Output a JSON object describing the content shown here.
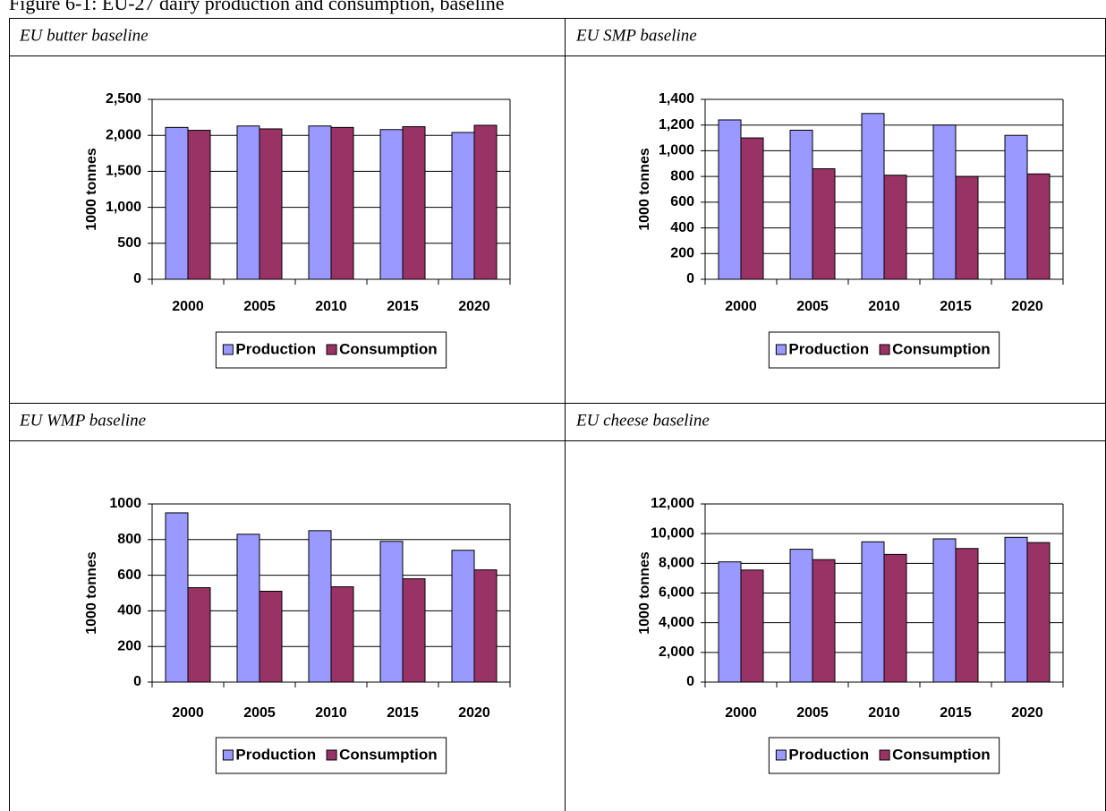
{
  "figure_title": "Figure 6-1: EU-27 dairy production and consumption, baseline",
  "chart_data": [
    {
      "type": "bar",
      "title": "EU butter baseline",
      "y_label": "1000 tonnes",
      "categories": [
        "2000",
        "2005",
        "2010",
        "2015",
        "2020"
      ],
      "series": [
        {
          "name": "Production",
          "color": "#9999ff",
          "values": [
            2110,
            2130,
            2130,
            2080,
            2040
          ]
        },
        {
          "name": "Consumption",
          "color": "#993366",
          "values": [
            2070,
            2090,
            2110,
            2120,
            2140
          ]
        }
      ],
      "ylim": [
        0,
        2500
      ],
      "yticks": [
        0,
        500,
        {
          "value": 1000,
          "label": "1,000"
        },
        {
          "value": 1500,
          "label": "1,500"
        },
        {
          "value": 2000,
          "label": "2,000"
        },
        {
          "value": 2500,
          "label": "2,500"
        }
      ],
      "grid": true,
      "legend": "bottom"
    },
    {
      "type": "bar",
      "title": "EU SMP baseline",
      "y_label": "1000 tonnes",
      "categories": [
        "2000",
        "2005",
        "2010",
        "2015",
        "2020"
      ],
      "series": [
        {
          "name": "Production",
          "color": "#9999ff",
          "values": [
            1240,
            1160,
            1290,
            1200,
            1120
          ]
        },
        {
          "name": "Consumption",
          "color": "#993366",
          "values": [
            1100,
            860,
            810,
            800,
            820
          ]
        }
      ],
      "ylim": [
        0,
        1400
      ],
      "yticks": [
        0,
        200,
        400,
        600,
        800,
        {
          "value": 1000,
          "label": "1,000"
        },
        {
          "value": 1200,
          "label": "1,200"
        },
        {
          "value": 1400,
          "label": "1,400"
        }
      ],
      "grid": true,
      "legend": "bottom"
    },
    {
      "type": "bar",
      "title": "EU WMP baseline",
      "y_label": "1000 tonnes",
      "categories": [
        "2000",
        "2005",
        "2010",
        "2015",
        "2020"
      ],
      "series": [
        {
          "name": "Production",
          "color": "#9999ff",
          "values": [
            950,
            830,
            850,
            790,
            740
          ]
        },
        {
          "name": "Consumption",
          "color": "#993366",
          "values": [
            530,
            510,
            535,
            580,
            630
          ]
        }
      ],
      "ylim": [
        0,
        1000
      ],
      "yticks": [
        0,
        200,
        400,
        600,
        800,
        1000
      ],
      "grid": true,
      "legend": "bottom"
    },
    {
      "type": "bar",
      "title": "EU cheese baseline",
      "y_label": "1000 tonnes",
      "categories": [
        "2000",
        "2005",
        "2010",
        "2015",
        "2020"
      ],
      "series": [
        {
          "name": "Production",
          "color": "#9999ff",
          "values": [
            8100,
            8950,
            9450,
            9650,
            9750
          ]
        },
        {
          "name": "Consumption",
          "color": "#993366",
          "values": [
            7550,
            8250,
            8600,
            9000,
            9400
          ]
        }
      ],
      "ylim": [
        0,
        12000
      ],
      "yticks": [
        0,
        {
          "value": 2000,
          "label": "2,000"
        },
        {
          "value": 4000,
          "label": "4,000"
        },
        {
          "value": 6000,
          "label": "6,000"
        },
        {
          "value": 8000,
          "label": "8,000"
        },
        {
          "value": 10000,
          "label": "10,000"
        },
        {
          "value": 12000,
          "label": "12,000"
        }
      ],
      "grid": true,
      "legend": "bottom"
    }
  ]
}
